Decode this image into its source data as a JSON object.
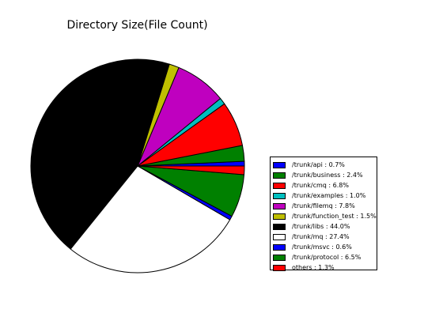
{
  "chart_data": {
    "type": "pie",
    "title": "Directory Size(File Count)",
    "start_angle_deg": 0,
    "direction": "counterclockwise",
    "legend_position": "right",
    "slices": [
      {
        "label": "/trunk/api : 0.7%",
        "value": 0.7,
        "color": "#0000ff"
      },
      {
        "label": "/trunk/business : 2.4%",
        "value": 2.4,
        "color": "#008000"
      },
      {
        "label": "/trunk/cmq : 6.8%",
        "value": 6.8,
        "color": "#ff0000"
      },
      {
        "label": "/trunk/examples : 1.0%",
        "value": 1.0,
        "color": "#00bfbf"
      },
      {
        "label": "/trunk/filemq : 7.8%",
        "value": 7.8,
        "color": "#bf00bf"
      },
      {
        "label": "/trunk/function_test : 1.5%",
        "value": 1.5,
        "color": "#bfbf00"
      },
      {
        "label": "/trunk/libs : 44.0%",
        "value": 44.0,
        "color": "#000000"
      },
      {
        "label": "/trunk/mq : 27.4%",
        "value": 27.4,
        "color": "#ffffff"
      },
      {
        "label": "/trunk/msvc : 0.6%",
        "value": 0.6,
        "color": "#0000ff"
      },
      {
        "label": "/trunk/protocol : 6.5%",
        "value": 6.5,
        "color": "#008000"
      },
      {
        "label": "others : 1.3%",
        "value": 1.3,
        "color": "#ff0000"
      }
    ]
  }
}
